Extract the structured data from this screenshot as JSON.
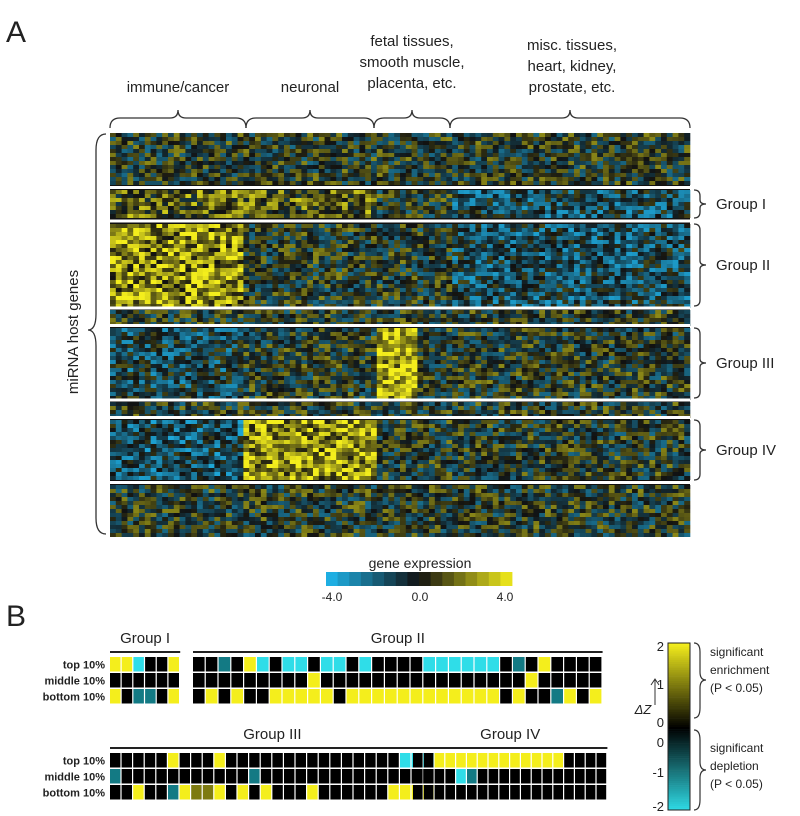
{
  "chart_data": [
    {
      "type": "heatmap",
      "panel_label": "A",
      "column_groups": [
        "immune/cancer",
        "neuronal",
        "fetal tissues,\nsmooth muscle,\nplacenta, etc.",
        "misc. tissues,\nheart, kidney,\nprostate, etc."
      ],
      "row_groups": [
        "Group I",
        "Group II",
        "Group III",
        "Group IV"
      ],
      "row_axis_label": "miRNA host genes",
      "colorbar": {
        "title": "gene expression",
        "min": -4.0,
        "mid": 0.0,
        "max": 4.0,
        "ticks": [
          "-4.0",
          "0.0",
          "4.0"
        ]
      },
      "colors": {
        "low": "#1fb8f0",
        "mid": "#111111",
        "high": "#f4ee1c"
      }
    },
    {
      "type": "heatmap",
      "panel_label": "B",
      "row_labels": [
        "top 10%",
        "middle 10%",
        "bottom 10%"
      ],
      "colorbar": {
        "label": "ΔZ",
        "upper_ticks": [
          "2",
          "1",
          "0"
        ],
        "lower_ticks": [
          "0",
          "-1",
          "-2"
        ],
        "enrichment_label": "significant\nenrichment\n(P < 0.05)",
        "depletion_label": "significant\ndepletion\n(P < 0.05)"
      },
      "colors": {
        "enrich": "#f4ee1c",
        "deplete": "#2fdde8",
        "none": "#000000"
      },
      "groups": [
        {
          "name": "Group I",
          "rows": [
            [
              2,
              2,
              -2,
              0,
              0,
              2
            ],
            [
              0,
              0,
              0,
              0,
              0,
              0
            ],
            [
              2,
              0,
              -1,
              -1,
              0,
              2
            ]
          ]
        },
        {
          "name": "Group II",
          "rows": [
            [
              0,
              0,
              -1,
              0,
              2,
              -2,
              0,
              -2,
              -2,
              0,
              -2,
              -2,
              0,
              -2,
              0,
              0,
              0,
              0,
              -2,
              -2,
              -2,
              -2,
              -2,
              -2,
              0,
              -1,
              0,
              2,
              0,
              0,
              0,
              0
            ],
            [
              0,
              0,
              0,
              0,
              0,
              0,
              0,
              0,
              0,
              2,
              0,
              0,
              0,
              0,
              0,
              0,
              0,
              0,
              0,
              0,
              0,
              0,
              0,
              0,
              0,
              0,
              2,
              0,
              0,
              0,
              0,
              0
            ],
            [
              0,
              2,
              0,
              2,
              0,
              0,
              2,
              2,
              2,
              2,
              2,
              0,
              2,
              2,
              2,
              2,
              2,
              2,
              2,
              2,
              2,
              2,
              2,
              2,
              0,
              2,
              0,
              0,
              -1,
              2,
              0,
              2
            ]
          ]
        },
        {
          "name": "Group III",
          "rows": [
            [
              0,
              0,
              0,
              0,
              0,
              2,
              0,
              0,
              0,
              2,
              0,
              0,
              0,
              0,
              0,
              0,
              0,
              0,
              0,
              0,
              0,
              0,
              0,
              0,
              0,
              -2,
              -2,
              -2
            ],
            [
              -1,
              0,
              0,
              0,
              0,
              0,
              0,
              0,
              0,
              0,
              0,
              0,
              -1,
              0,
              0,
              0,
              0,
              0,
              0,
              0,
              0,
              0,
              0,
              0,
              0,
              0,
              0,
              0
            ],
            [
              0,
              0,
              2,
              0,
              0,
              -1,
              2,
              1,
              1,
              2,
              0,
              2,
              0,
              2,
              0,
              0,
              0,
              2,
              0,
              0,
              0,
              0,
              0,
              0,
              2,
              2,
              2,
              2
            ]
          ]
        },
        {
          "name": "Group IV",
          "rows": [
            [
              0,
              0,
              2,
              2,
              2,
              2,
              2,
              2,
              2,
              2,
              2,
              2,
              2,
              2,
              0,
              0,
              0,
              0
            ],
            [
              0,
              0,
              0,
              0,
              -2,
              -1,
              0,
              0,
              0,
              0,
              0,
              0,
              0,
              0,
              0,
              0,
              0,
              0
            ],
            [
              0,
              0,
              0,
              0,
              0,
              0,
              0,
              0,
              0,
              0,
              0,
              0,
              0,
              0,
              0,
              0,
              0,
              0
            ]
          ]
        }
      ]
    }
  ]
}
